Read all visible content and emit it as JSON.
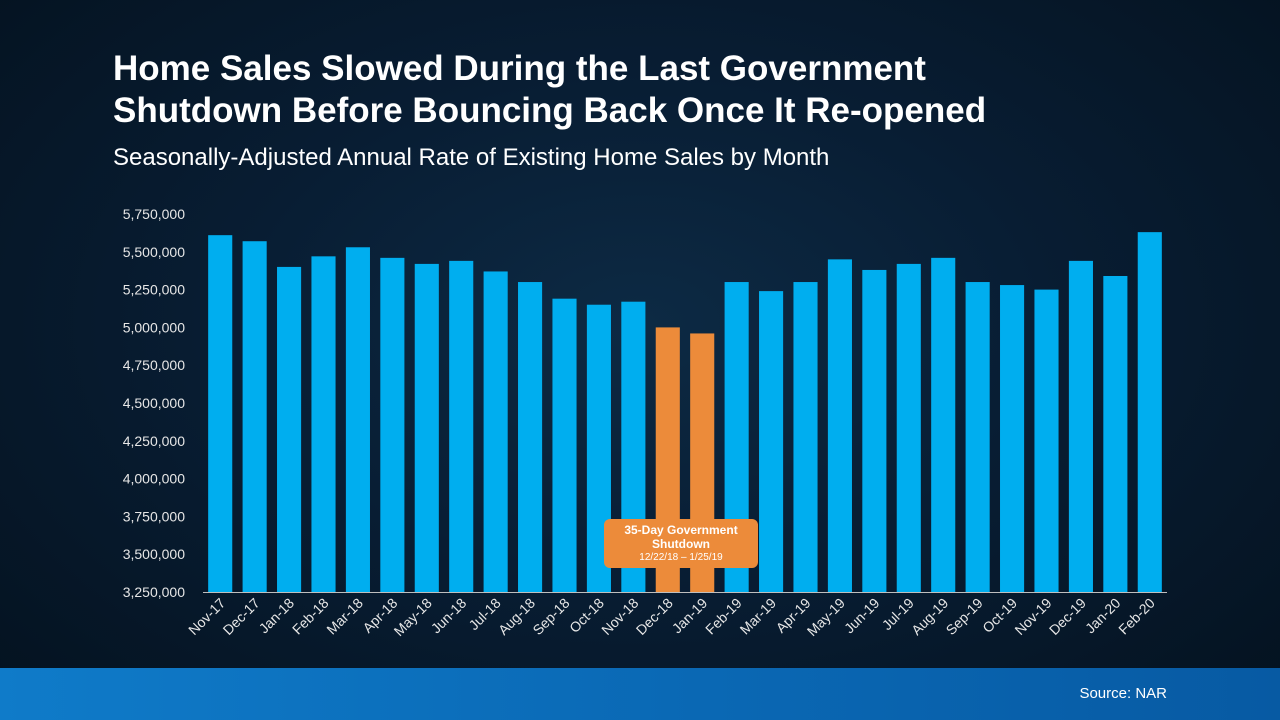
{
  "title_line1": "Home Sales Slowed During the Last Government",
  "title_line2": "Shutdown Before Bouncing Back Once It Re-opened",
  "subtitle": "Seasonally-Adjusted Annual Rate of Existing Home Sales by Month",
  "callout": {
    "title_line1": "35-Day Government",
    "title_line2": "Shutdown",
    "dates": "12/22/18 – 1/25/19"
  },
  "source": "Source: NAR",
  "colors": {
    "bar": "#00aeef",
    "highlight": "#ec8b3a",
    "axis": "#e6e6e6"
  },
  "chart_data": {
    "type": "bar",
    "title": "Home Sales Slowed During the Last Government Shutdown Before Bouncing Back Once It Re-opened",
    "subtitle": "Seasonally-Adjusted Annual Rate of Existing Home Sales by Month",
    "xlabel": "",
    "ylabel": "",
    "ylim": [
      3250000,
      5750000
    ],
    "yticks": [
      3250000,
      3500000,
      3750000,
      4000000,
      4250000,
      4500000,
      4750000,
      5000000,
      5250000,
      5500000,
      5750000
    ],
    "grid": false,
    "categories": [
      "Nov-17",
      "Dec-17",
      "Jan-18",
      "Feb-18",
      "Mar-18",
      "Apr-18",
      "May-18",
      "Jun-18",
      "Jul-18",
      "Aug-18",
      "Sep-18",
      "Oct-18",
      "Nov-18",
      "Dec-18",
      "Jan-19",
      "Feb-19",
      "Mar-19",
      "Apr-19",
      "May-19",
      "Jun-19",
      "Jul-19",
      "Aug-19",
      "Sep-19",
      "Oct-19",
      "Nov-19",
      "Dec-19",
      "Jan-20",
      "Feb-20"
    ],
    "values": [
      5610000,
      5570000,
      5400000,
      5470000,
      5530000,
      5460000,
      5420000,
      5440000,
      5370000,
      5300000,
      5190000,
      5150000,
      5170000,
      5000000,
      4960000,
      5300000,
      5240000,
      5300000,
      5450000,
      5380000,
      5420000,
      5460000,
      5300000,
      5280000,
      5250000,
      5440000,
      5340000,
      5630000
    ],
    "highlighted": [
      "Dec-18",
      "Jan-19"
    ]
  }
}
